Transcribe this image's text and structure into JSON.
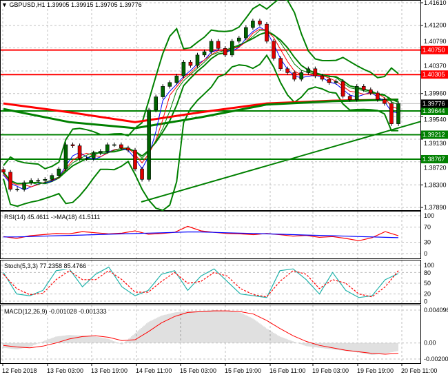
{
  "header": {
    "symbol": "GBPUSD,H1",
    "ohlc": "1.39905 1.39915 1.39705 1.39776",
    "menu_icon": "triangle-down-icon"
  },
  "colors": {
    "bull": "#006400",
    "bear": "#e00000",
    "support": "#008000",
    "resistance": "#ff0000",
    "rsi": "#ff0000",
    "rsi_ma": "#0000ff",
    "stoch_main": "#20b2aa",
    "stoch_signal": "#ff0000",
    "macd_signal": "#ff0000",
    "macd_hist": "#c0c0c0"
  },
  "chart_data": [
    {
      "type": "candlestick",
      "title": "GBPUSD,H1",
      "ylim": [
        1.3789,
        1.4161
      ],
      "y_ticks": [
        "1.41610",
        "1.41200",
        "1.40790",
        "1.40370",
        "1.39960",
        "1.39540",
        "1.39130",
        "1.38720",
        "1.38300",
        "1.37890"
      ],
      "x_ticks": [
        "12 Feb 2018",
        "13 Feb 03:00",
        "13 Feb 19:00",
        "14 Feb 11:00",
        "15 Feb 03:00",
        "15 Feb 19:00",
        "16 Feb 11:00",
        "19 Feb 03:00",
        "19 Feb 19:00",
        "20 Feb 11:00"
      ],
      "closes": [
        1.3853,
        1.3822,
        1.3822,
        1.3834,
        1.3838,
        1.3838,
        1.384,
        1.3847,
        1.3859,
        1.3903,
        1.3901,
        1.3878,
        1.3878,
        1.3888,
        1.3891,
        1.3903,
        1.3903,
        1.3897,
        1.3893,
        1.3859,
        1.384,
        1.3966,
        1.399,
        1.4009,
        1.4016,
        1.4028,
        1.4053,
        1.4047,
        1.4066,
        1.4072,
        1.4091,
        1.4078,
        1.4066,
        1.4091,
        1.4097,
        1.4116,
        1.4128,
        1.4122,
        1.4091,
        1.406,
        1.4041,
        1.4034,
        1.4022,
        1.4034,
        1.4041,
        1.4028,
        1.4022,
        1.4016,
        1.4018,
        1.3991,
        1.3985,
        1.4009,
        1.4003,
        1.3997,
        1.3985,
        1.3978,
        1.3941,
        1.3978
      ],
      "ma_red": [
        1.3978,
        1.3962,
        1.3944,
        1.3962,
        1.3978,
        1.3983,
        1.3985
      ],
      "ma_green": [
        1.3968,
        1.3944,
        1.3933,
        1.3953,
        1.3976,
        1.3982,
        1.3985
      ],
      "resistance_levels": [
        "1.40750",
        "1.40305"
      ],
      "support_levels": [
        "1.39644",
        "1.39212",
        "1.38767"
      ],
      "current_price": "1.39776",
      "trendline": {
        "start_price": 1.3799,
        "end_price": 1.3945
      }
    },
    {
      "type": "line",
      "title": "RSI(14) 45.4611  ->MA(18) 41.5111",
      "ylim": [
        0,
        100
      ],
      "y_ticks": [
        "100",
        "70",
        "30",
        "0"
      ],
      "series": [
        {
          "name": "RSI(14)",
          "values": [
            45,
            40,
            47,
            50,
            53,
            52,
            58,
            55,
            52,
            54,
            60,
            51,
            53,
            56,
            72,
            60,
            56,
            53,
            52,
            50,
            53,
            50,
            46,
            48,
            43,
            45,
            40,
            34,
            42,
            58,
            47
          ]
        },
        {
          "name": "MA(18)",
          "values": [
            44,
            44,
            45,
            46,
            47,
            48,
            49,
            50,
            51,
            52,
            53,
            54,
            55,
            56,
            57,
            57,
            56,
            55,
            54,
            53,
            52,
            51,
            50,
            49,
            48,
            47,
            46,
            45,
            44,
            43,
            42
          ]
        }
      ]
    },
    {
      "type": "line",
      "title": "Stoch(5,3,3) 77.2358 85.4766",
      "ylim": [
        0,
        100
      ],
      "y_ticks": [
        "100",
        "80",
        "50",
        "20",
        "0"
      ],
      "series": [
        {
          "name": "main",
          "values": [
            80,
            20,
            15,
            30,
            85,
            90,
            40,
            75,
            95,
            40,
            15,
            30,
            75,
            85,
            30,
            70,
            90,
            55,
            20,
            15,
            10,
            85,
            90,
            60,
            20,
            80,
            30,
            10,
            15,
            60,
            77
          ]
        },
        {
          "name": "signal",
          "values": [
            75,
            35,
            18,
            22,
            60,
            85,
            60,
            60,
            85,
            60,
            25,
            25,
            55,
            80,
            50,
            55,
            80,
            70,
            35,
            18,
            12,
            55,
            85,
            75,
            35,
            60,
            50,
            20,
            12,
            40,
            85
          ]
        }
      ]
    },
    {
      "type": "bar",
      "title": "MACD(12,26,9) -0.001028 -0.001333",
      "ylim": [
        -0.002002,
        0.004096
      ],
      "y_ticks": [
        "0.004096",
        "0.00",
        "-0.002002"
      ],
      "series": [
        {
          "name": "MACD",
          "values": [
            -0.0006,
            -0.0008,
            -0.0005,
            0.0002,
            0.0008,
            0.001,
            0.0009,
            0.0008,
            0.0005,
            -0.0002,
            0.0012,
            0.0026,
            0.0034,
            0.0038,
            0.004,
            0.004,
            0.0041,
            0.004,
            0.0038,
            0.003,
            0.0018,
            0.0008,
            0.0002,
            -0.0004,
            -0.0006,
            -0.0008,
            -0.001,
            -0.0012,
            -0.0015,
            -0.0013,
            -0.001
          ]
        },
        {
          "name": "Signal",
          "values": [
            -0.0003,
            -0.0005,
            -0.0006,
            -0.0004,
            0.0,
            0.0005,
            0.0008,
            0.0009,
            0.0007,
            0.0003,
            0.0004,
            0.0014,
            0.0025,
            0.0033,
            0.0038,
            0.0039,
            0.004,
            0.004,
            0.0039,
            0.0036,
            0.0028,
            0.0018,
            0.0009,
            0.0002,
            -0.0003,
            -0.0006,
            -0.0009,
            -0.0011,
            -0.0013,
            -0.0014,
            -0.0013
          ]
        }
      ]
    }
  ]
}
